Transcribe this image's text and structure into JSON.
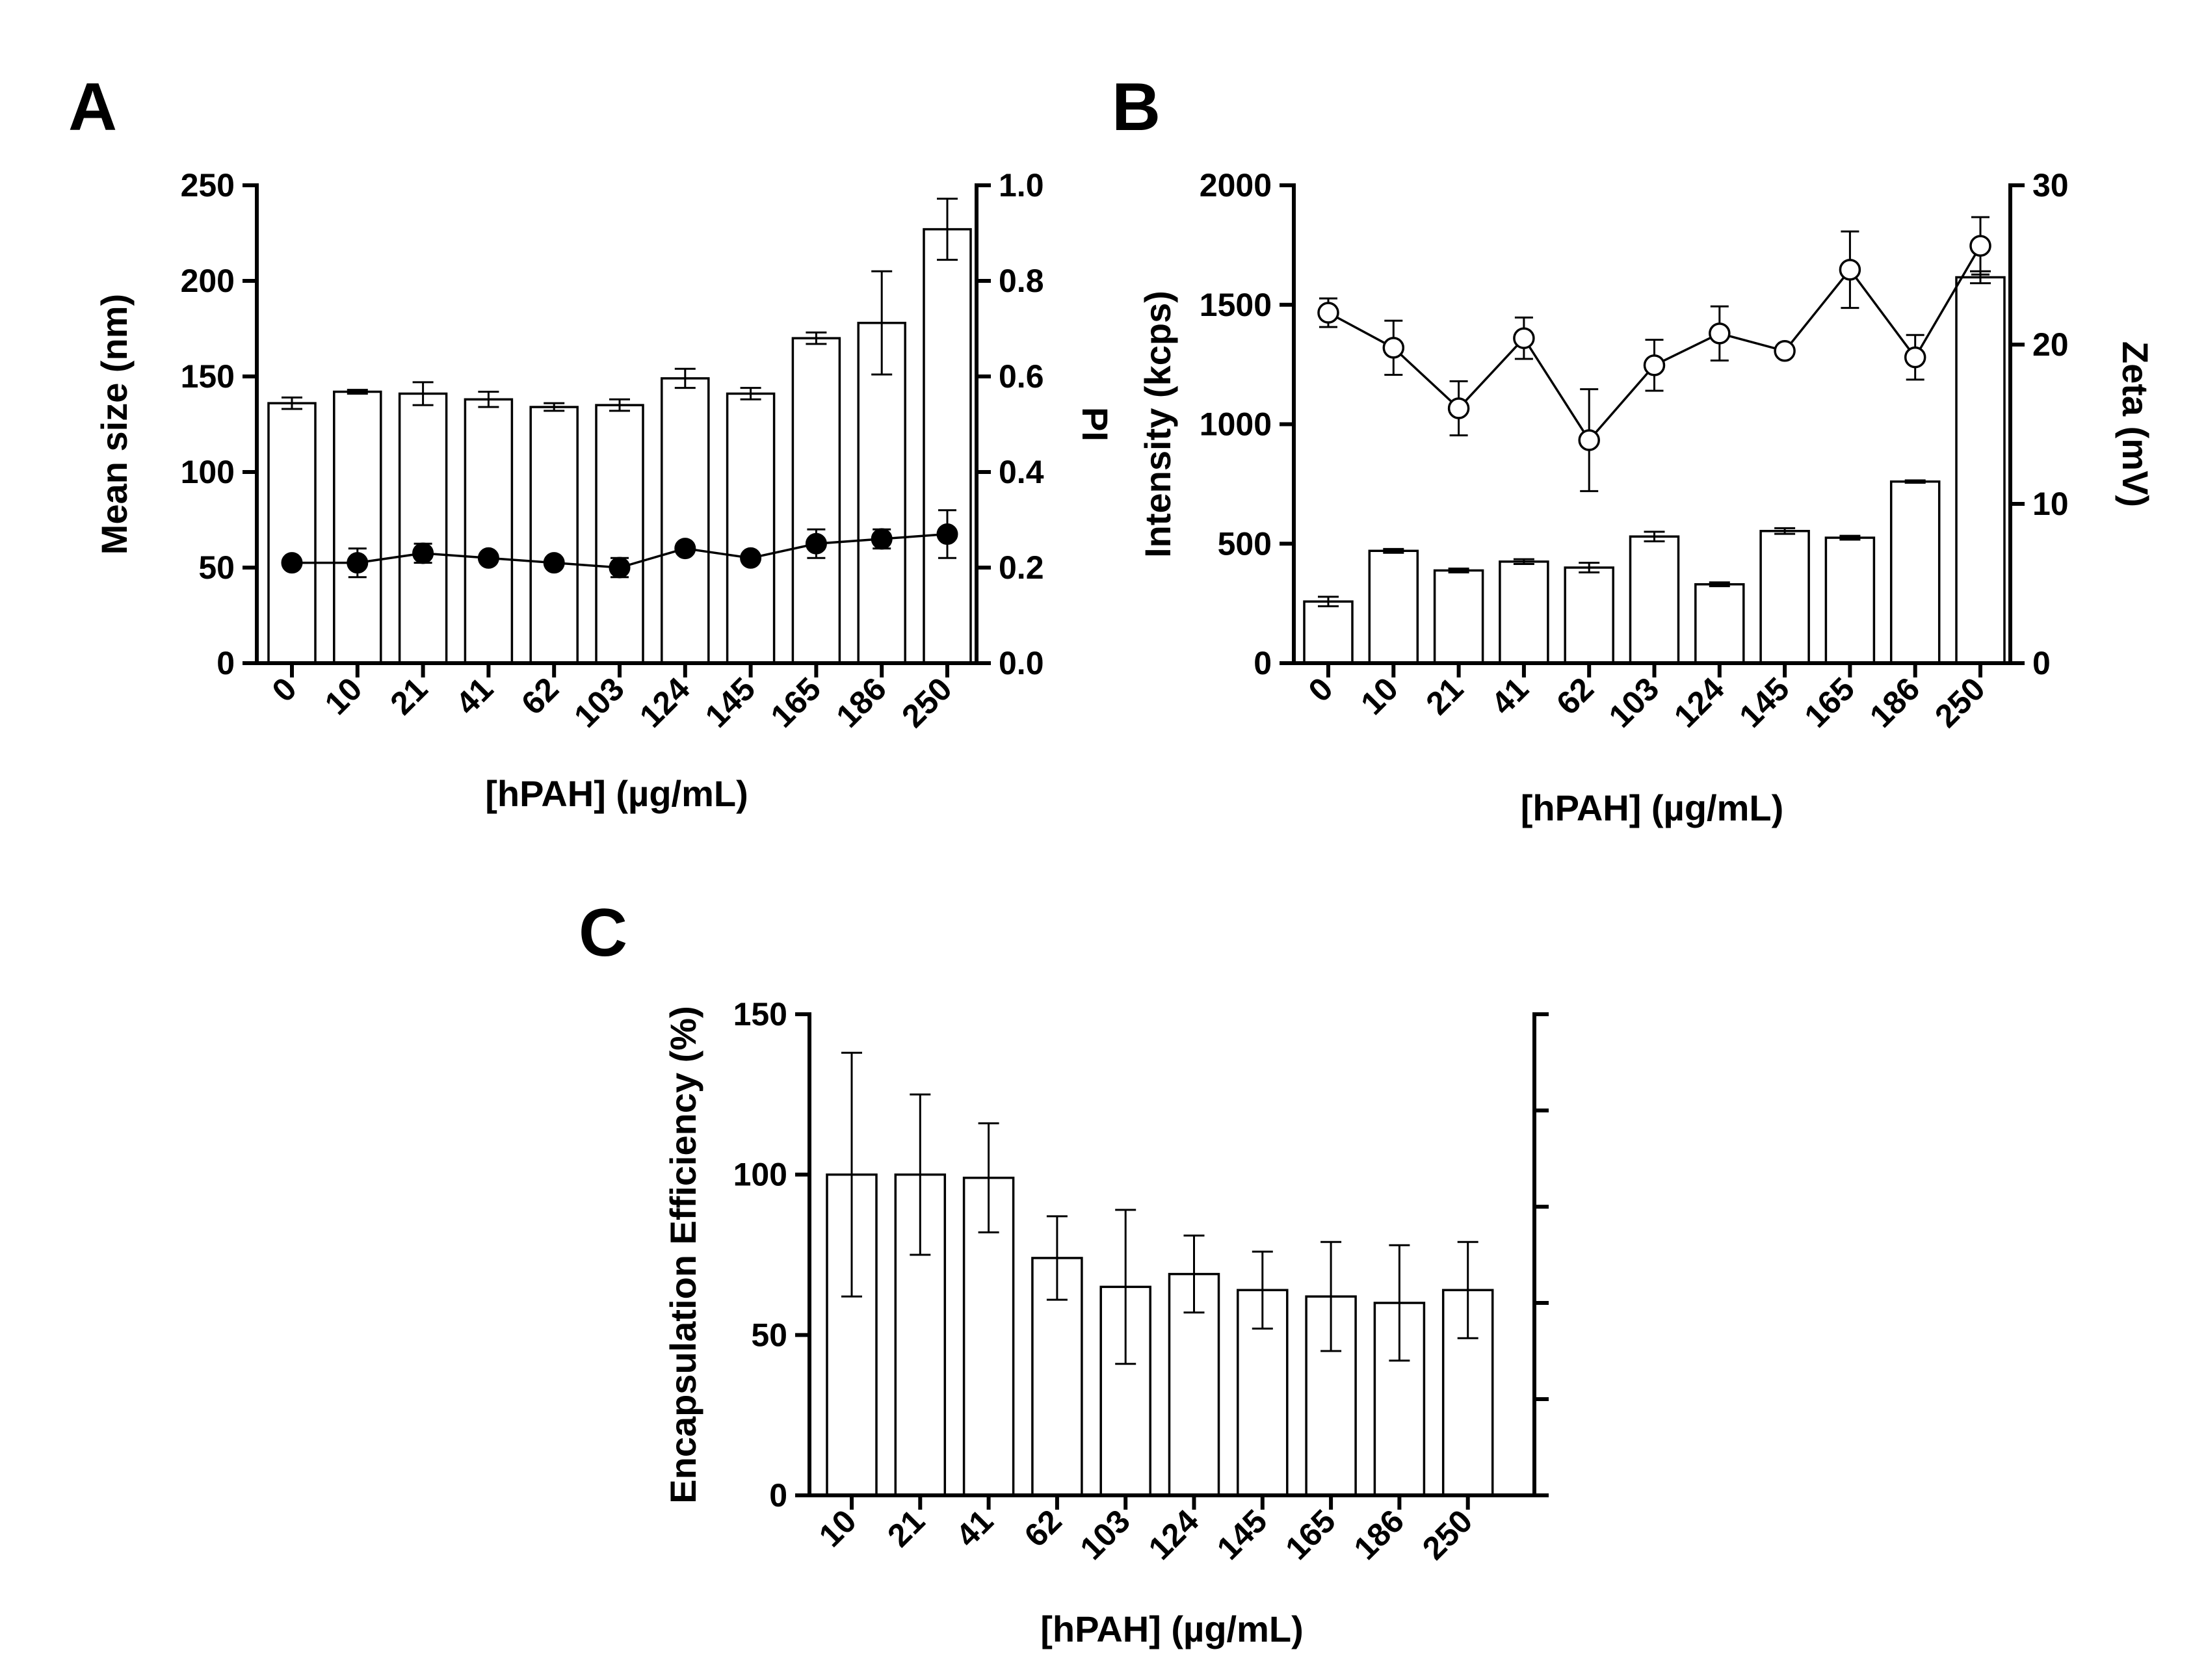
{
  "chart_data": [
    {
      "panel": "A",
      "type": "bar",
      "categories": [
        "0",
        "10",
        "21",
        "41",
        "62",
        "103",
        "124",
        "145",
        "165",
        "186",
        "250"
      ],
      "xlabel": "[hPAH] (µg/mL)",
      "ylabel": "Mean size (nm)",
      "ylim": [
        0,
        250
      ],
      "yticks": [
        "0",
        "50",
        "100",
        "150",
        "200",
        "250"
      ],
      "y2label": "PI",
      "y2lim": [
        0,
        1.0
      ],
      "y2ticks": [
        "0.0",
        "0.2",
        "0.4",
        "0.6",
        "0.8",
        "1.0"
      ],
      "series": [
        {
          "name": "Mean size (nm)",
          "kind": "bar",
          "axis": "left",
          "values": [
            136,
            142,
            141,
            138,
            134,
            135,
            149,
            141,
            170,
            178,
            227
          ],
          "errors": [
            3,
            1,
            6,
            4,
            2,
            3,
            5,
            3,
            3,
            27,
            16
          ]
        },
        {
          "name": "PI",
          "kind": "line",
          "marker": "filled-circle",
          "axis": "right",
          "values": [
            0.21,
            0.21,
            0.23,
            0.22,
            0.21,
            0.2,
            0.24,
            0.22,
            0.25,
            0.26,
            0.27
          ],
          "errors": [
            0.01,
            0.03,
            0.02,
            0.01,
            0.01,
            0.02,
            0.01,
            0.01,
            0.03,
            0.02,
            0.05
          ]
        }
      ]
    },
    {
      "panel": "B",
      "type": "bar",
      "categories": [
        "0",
        "10",
        "21",
        "41",
        "62",
        "103",
        "124",
        "145",
        "165",
        "186",
        "250"
      ],
      "xlabel": "[hPAH] (µg/mL)",
      "ylabel": "Intensity (kcps)",
      "ylim": [
        0,
        2000
      ],
      "yticks": [
        "0",
        "500",
        "1000",
        "1500",
        "2000"
      ],
      "y2label": "Zeta (mV)",
      "y2lim": [
        0,
        30
      ],
      "y2ticks": [
        "0",
        "10",
        "20",
        "30"
      ],
      "series": [
        {
          "name": "Intensity (kcps)",
          "kind": "bar",
          "axis": "left",
          "values": [
            258,
            470,
            388,
            425,
            400,
            530,
            330,
            553,
            525,
            760,
            1615
          ],
          "errors": [
            20,
            8,
            8,
            10,
            20,
            20,
            8,
            12,
            8,
            5,
            25
          ]
        },
        {
          "name": "Zeta (mV)",
          "kind": "line",
          "marker": "open-circle",
          "axis": "right",
          "values": [
            22.0,
            19.8,
            16.0,
            20.4,
            14.0,
            18.7,
            20.7,
            19.6,
            24.7,
            19.2,
            26.2
          ],
          "errors": [
            0.9,
            1.7,
            1.7,
            1.3,
            3.2,
            1.6,
            1.7,
            0.3,
            2.4,
            1.4,
            1.8
          ]
        }
      ]
    },
    {
      "panel": "C",
      "type": "bar",
      "categories": [
        "10",
        "21",
        "41",
        "62",
        "103",
        "124",
        "145",
        "165",
        "186",
        "250"
      ],
      "xlabel": "[hPAH] (µg/mL)",
      "ylabel": "Encapsulation Efficiency (%)",
      "ylim": [
        0,
        150
      ],
      "yticks": [
        "0",
        "50",
        "100",
        "150"
      ],
      "right_axis": "unlabeled ticks",
      "series": [
        {
          "name": "Encapsulation Efficiency (%)",
          "kind": "bar",
          "axis": "left",
          "values": [
            100,
            100,
            99,
            74,
            65,
            69,
            64,
            62,
            60,
            64
          ],
          "errors": [
            38,
            25,
            17,
            13,
            24,
            12,
            12,
            17,
            18,
            15
          ]
        }
      ]
    }
  ]
}
